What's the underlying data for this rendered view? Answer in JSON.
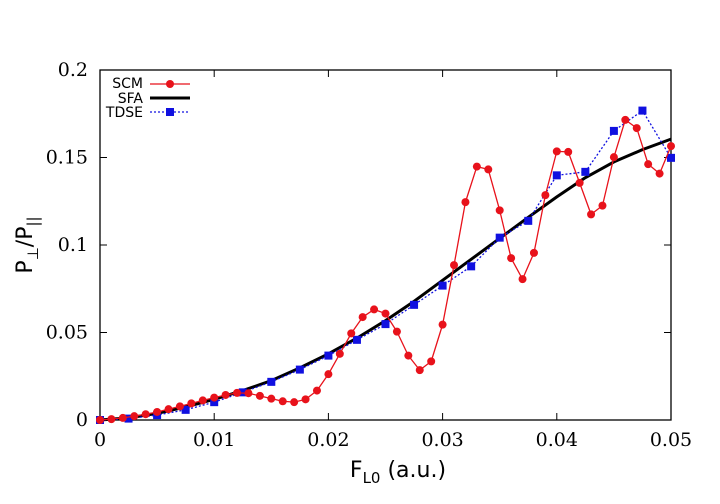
{
  "chart_data": {
    "type": "line",
    "title": "",
    "xlabel": "F",
    "xlabel_sub": "L0",
    "xlabel_suffix": " (a.u.)",
    "ylabel": "P",
    "ylabel_sub1": "⊥",
    "ylabel_mid": "/P",
    "ylabel_sub2": "||",
    "xlim": [
      0,
      0.05
    ],
    "ylim": [
      0,
      0.2
    ],
    "xticks": [
      0,
      0.01,
      0.02,
      0.03,
      0.04,
      0.05
    ],
    "xtick_labels": [
      "0",
      "0.01",
      "0.02",
      "0.03",
      "0.04",
      "0.05"
    ],
    "yticks": [
      0,
      0.05,
      0.1,
      0.15,
      0.2
    ],
    "ytick_labels": [
      "0",
      "0.05",
      "0.1",
      "0.15",
      "0.2"
    ],
    "grid": false,
    "legend_position": "top-left",
    "series": [
      {
        "name": "SCM",
        "color": "#e8121b",
        "style": "solid",
        "marker": "circle",
        "x": [
          0,
          0.001,
          0.002,
          0.003,
          0.004,
          0.005,
          0.006,
          0.007,
          0.008,
          0.009,
          0.01,
          0.011,
          0.012,
          0.013,
          0.014,
          0.015,
          0.016,
          0.017,
          0.018,
          0.019,
          0.02,
          0.021,
          0.022,
          0.023,
          0.024,
          0.025,
          0.026,
          0.027,
          0.028,
          0.029,
          0.03,
          0.031,
          0.032,
          0.033,
          0.034,
          0.035,
          0.036,
          0.037,
          0.038,
          0.039,
          0.04,
          0.041,
          0.042,
          0.043,
          0.044,
          0.045,
          0.046,
          0.047,
          0.048,
          0.049,
          0.05
        ],
        "y": [
          0,
          0.0005,
          0.0012,
          0.0022,
          0.0033,
          0.0046,
          0.0062,
          0.0078,
          0.0095,
          0.0112,
          0.0128,
          0.0143,
          0.0155,
          0.0153,
          0.0138,
          0.0122,
          0.0107,
          0.0102,
          0.0118,
          0.0168,
          0.0262,
          0.0378,
          0.0495,
          0.0588,
          0.0632,
          0.0608,
          0.0505,
          0.0368,
          0.0285,
          0.0335,
          0.0545,
          0.0885,
          0.1245,
          0.1448,
          0.1432,
          0.1198,
          0.0925,
          0.0805,
          0.0955,
          0.1285,
          0.1535,
          0.1532,
          0.1355,
          0.1175,
          0.1225,
          0.1502,
          0.1715,
          0.1668,
          0.1462,
          0.1408,
          0.1565
        ]
      },
      {
        "name": "SFA",
        "color": "#000000",
        "style": "solid",
        "marker": "none",
        "x": [
          0,
          0.0025,
          0.005,
          0.0075,
          0.01,
          0.0125,
          0.015,
          0.0175,
          0.02,
          0.0225,
          0.025,
          0.0275,
          0.03,
          0.0325,
          0.035,
          0.0375,
          0.04,
          0.0425,
          0.045,
          0.0475,
          0.05
        ],
        "y": [
          0,
          0.0012,
          0.0038,
          0.0075,
          0.0118,
          0.0168,
          0.0225,
          0.0298,
          0.0378,
          0.0468,
          0.0568,
          0.0678,
          0.0798,
          0.0918,
          0.1038,
          0.1158,
          0.1275,
          0.1385,
          0.1475,
          0.1545,
          0.1605
        ]
      },
      {
        "name": "TDSE",
        "color": "#1010e0",
        "style": "dotted",
        "marker": "square",
        "x": [
          0,
          0.0025,
          0.005,
          0.0075,
          0.01,
          0.0125,
          0.015,
          0.0175,
          0.02,
          0.0225,
          0.025,
          0.0275,
          0.03,
          0.0325,
          0.035,
          0.0375,
          0.04,
          0.0425,
          0.045,
          0.0475,
          0.05
        ],
        "y": [
          0,
          0.0008,
          0.0028,
          0.0058,
          0.0102,
          0.0158,
          0.0218,
          0.0288,
          0.0368,
          0.0458,
          0.0548,
          0.0658,
          0.0768,
          0.0878,
          0.1042,
          0.1138,
          0.1398,
          0.1418,
          0.1652,
          0.1768,
          0.1498
        ]
      }
    ]
  }
}
